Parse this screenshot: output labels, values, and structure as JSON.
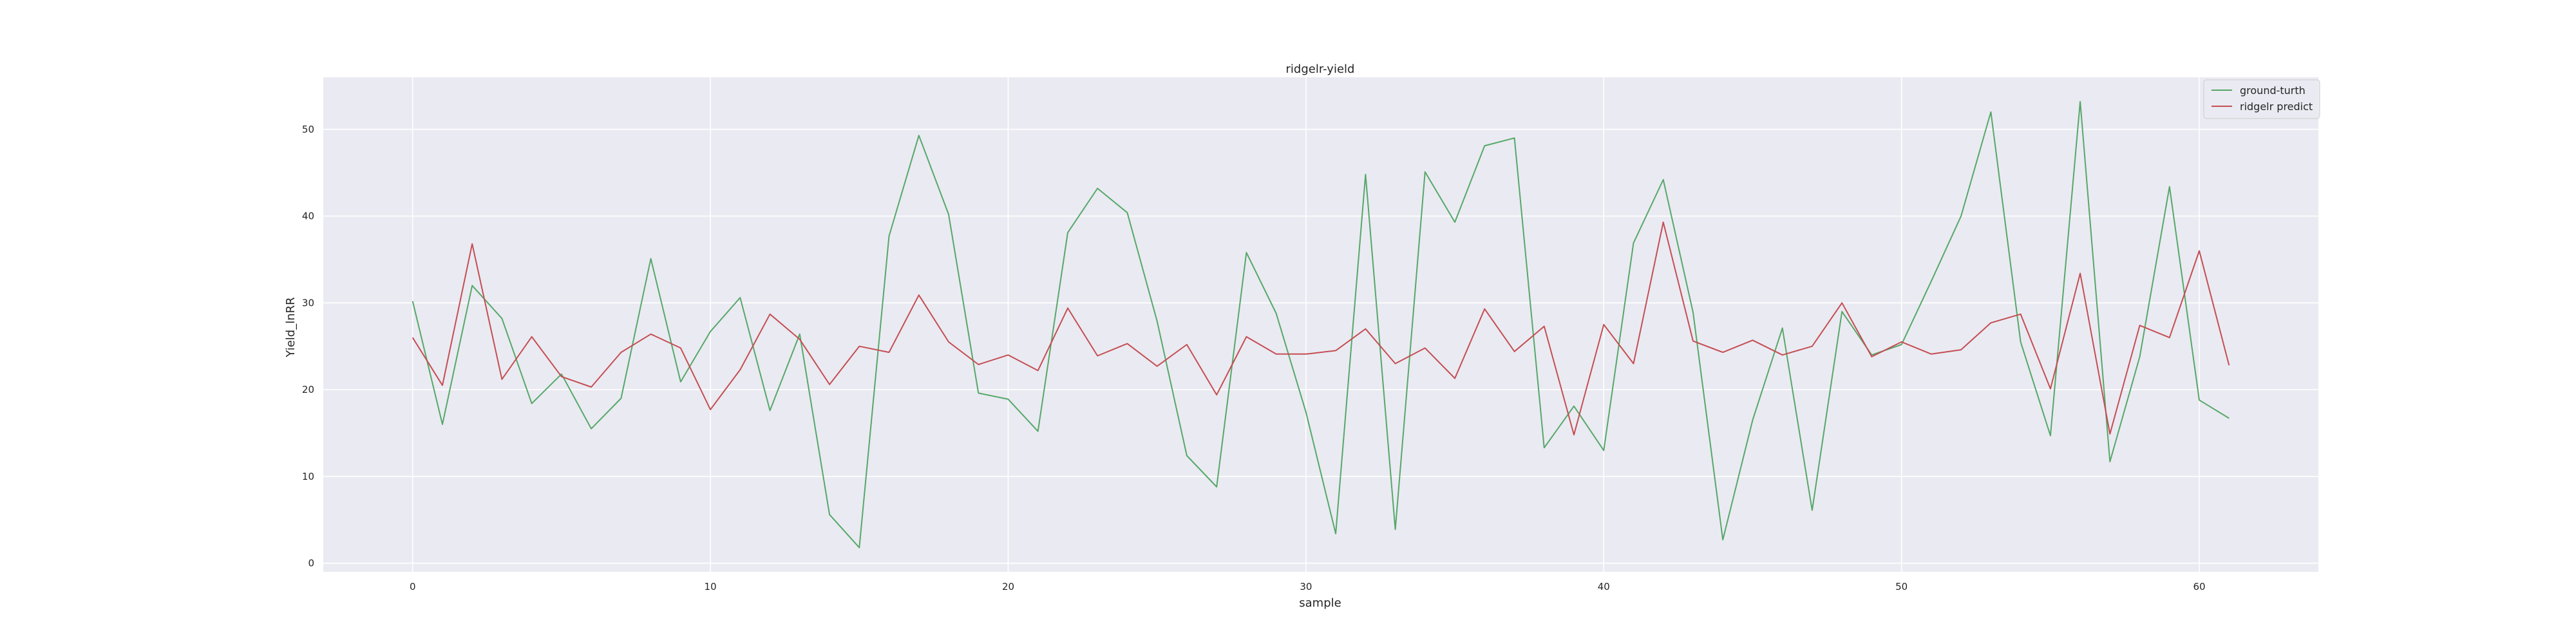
{
  "chart_data": {
    "type": "line",
    "title": "ridgelr-yield",
    "xlabel": "sample",
    "ylabel": "Yield_lnRR",
    "xlim": [
      -3,
      64
    ],
    "ylim": [
      -1,
      56
    ],
    "xticks": [
      0,
      10,
      20,
      30,
      40,
      50,
      60
    ],
    "yticks": [
      0,
      10,
      20,
      30,
      40,
      50
    ],
    "grid": true,
    "legend_position": "top-right",
    "background_color": "#eaeaf2",
    "grid_color": "#ffffff",
    "series": [
      {
        "name": "ground-turth",
        "color": "#55a868",
        "x": [
          0,
          1,
          2,
          3,
          4,
          5,
          6,
          7,
          8,
          9,
          10,
          11,
          12,
          13,
          14,
          15,
          16,
          17,
          18,
          19,
          20,
          21,
          22,
          23,
          24,
          25,
          26,
          27,
          28,
          29,
          30,
          31,
          32,
          33,
          34,
          35,
          36,
          37,
          38,
          39,
          40,
          41,
          42,
          43,
          44,
          45,
          46,
          47,
          48,
          49,
          50,
          51,
          52,
          53,
          54,
          55,
          56,
          57,
          58,
          59,
          60,
          61
        ],
        "values": [
          30.2,
          16.0,
          32.0,
          28.2,
          18.4,
          21.8,
          15.5,
          19.0,
          35.1,
          20.9,
          26.7,
          30.6,
          17.6,
          26.4,
          5.6,
          1.8,
          37.7,
          49.3,
          40.2,
          19.6,
          18.9,
          15.2,
          38.1,
          43.2,
          40.4,
          27.9,
          12.4,
          8.8,
          35.8,
          28.8,
          17.4,
          3.4,
          44.8,
          3.9,
          45.1,
          39.3,
          48.1,
          49.0,
          13.3,
          18.1,
          13.0,
          36.9,
          44.2,
          28.9,
          2.7,
          16.5,
          27.1,
          6.1,
          29.0,
          24.0,
          25.2,
          32.5,
          40.0,
          52.0,
          25.5,
          14.7,
          53.2,
          11.7,
          23.8,
          43.4,
          18.8,
          16.7
        ]
      },
      {
        "name": "ridgelr predict",
        "color": "#c44e52",
        "x": [
          0,
          1,
          2,
          3,
          4,
          5,
          6,
          7,
          8,
          9,
          10,
          11,
          12,
          13,
          14,
          15,
          16,
          17,
          18,
          19,
          20,
          21,
          22,
          23,
          24,
          25,
          26,
          27,
          28,
          29,
          30,
          31,
          32,
          33,
          34,
          35,
          36,
          37,
          38,
          39,
          40,
          41,
          42,
          43,
          44,
          45,
          46,
          47,
          48,
          49,
          50,
          51,
          52,
          53,
          54,
          55,
          56,
          57,
          58,
          59,
          60,
          61
        ],
        "values": [
          26.0,
          20.5,
          36.8,
          21.2,
          26.1,
          21.5,
          20.3,
          24.3,
          26.4,
          24.8,
          17.7,
          22.3,
          28.7,
          25.8,
          20.6,
          25.0,
          24.3,
          30.9,
          25.5,
          22.9,
          24.0,
          22.2,
          29.4,
          23.9,
          25.3,
          22.7,
          25.2,
          19.4,
          26.1,
          24.1,
          24.1,
          24.5,
          27.0,
          23.0,
          24.8,
          21.3,
          29.3,
          24.4,
          27.3,
          14.8,
          27.5,
          23.0,
          39.3,
          25.6,
          24.3,
          25.7,
          24.0,
          25.0,
          30.0,
          23.8,
          25.5,
          24.1,
          24.6,
          27.7,
          28.7,
          20.1,
          33.4,
          14.9,
          27.4,
          26.0,
          36.0,
          22.8
        ]
      }
    ]
  }
}
